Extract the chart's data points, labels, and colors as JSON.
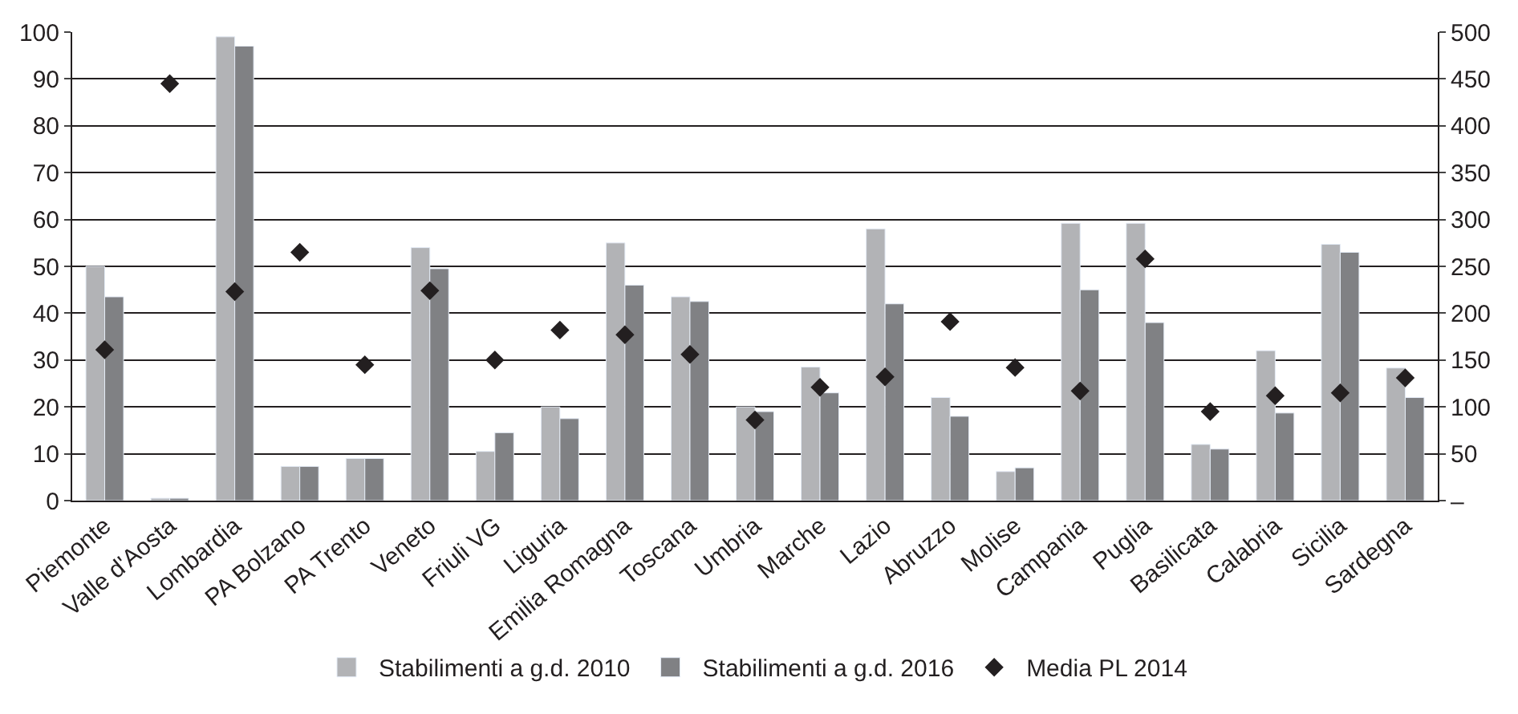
{
  "chart_data": {
    "type": "bar",
    "categories": [
      "Piemonte",
      "Valle d'Aosta",
      "Lombardia",
      "PA Bolzano",
      "PA Trento",
      "Veneto",
      "Friuli VG",
      "Liguria",
      "Emilia Romagna",
      "Toscana",
      "Umbria",
      "Marche",
      "Lazio",
      "Abruzzo",
      "Molise",
      "Campania",
      "Puglia",
      "Basilicata",
      "Calabria",
      "Sicilia",
      "Sardegna"
    ],
    "series": [
      {
        "name": "Stabilimenti a g.d. 2010",
        "color": "#b2b3b6",
        "values": [
          50,
          0.5,
          99,
          7.3,
          9,
          54,
          10.5,
          20,
          55,
          43.5,
          20,
          28.5,
          58,
          22,
          6.2,
          59.2,
          59.2,
          12,
          32,
          54.7,
          28.3
        ]
      },
      {
        "name": "Stabilimenti a g.d. 2016",
        "color": "#808184",
        "values": [
          43.5,
          0.5,
          97,
          7.3,
          9,
          49.5,
          14.5,
          17.5,
          46,
          42.5,
          19,
          23,
          42,
          18,
          7,
          45,
          38,
          11,
          18.7,
          53,
          22
        ]
      },
      {
        "name": "Media PL 2014",
        "type": "scatter",
        "axis": "y2",
        "marker": "diamond",
        "color": "#231f20",
        "values": [
          161,
          445,
          223,
          265,
          145,
          224,
          150,
          182,
          177,
          156,
          86,
          121,
          132,
          191,
          142,
          117,
          258,
          95,
          112,
          115,
          131
        ]
      }
    ],
    "ylim": [
      0,
      100
    ],
    "yticks": [
      0,
      10,
      20,
      30,
      40,
      50,
      60,
      70,
      80,
      90,
      100
    ],
    "y2lim": [
      0,
      500
    ],
    "y2ticks": [
      {
        "value": 0,
        "label": "–"
      },
      50,
      100,
      150,
      200,
      250,
      300,
      350,
      400,
      450,
      500
    ],
    "grid": "y",
    "legend": "bottom"
  }
}
